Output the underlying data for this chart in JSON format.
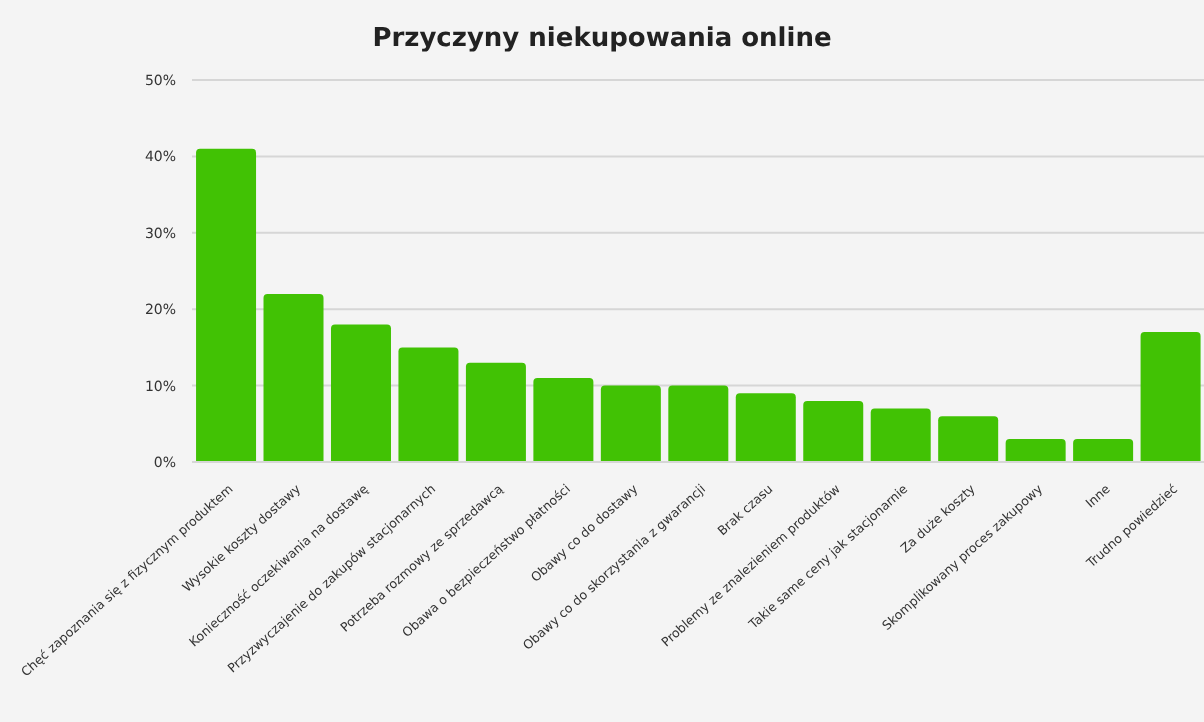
{
  "chart_data": {
    "type": "bar",
    "title": "Przyczyny niekupowania online",
    "categories": [
      "Chęć zapoznania się z fizycznym produktem",
      "Wysokie koszty dostawy",
      "Konieczność oczekiwania na dostawę",
      "Przyzwyczajenie do zakupów stacjonarnych",
      "Potrzeba rozmowy ze sprzedawcą",
      "Obawa o bezpieczeństwo płatności",
      "Obawy co do dostawy",
      "Obawy co do skorzystania z gwarancji",
      "Brak czasu",
      "Problemy ze znalezieniem produktów",
      "Takie same ceny jak stacjonarnie",
      "Za duże koszty",
      "Skomplikowany proces zakupowy",
      "Inne",
      "Trudno powiedzieć"
    ],
    "values": [
      41,
      22,
      18,
      15,
      13,
      11,
      10,
      10,
      9,
      8,
      7,
      6,
      3,
      3,
      17
    ],
    "color": "#41c204",
    "ylim": [
      0,
      50
    ],
    "yticks": [
      {
        "value": 0,
        "label": "0%"
      },
      {
        "value": 10,
        "label": "10%"
      },
      {
        "value": 20,
        "label": "20%"
      },
      {
        "value": 30,
        "label": "30%"
      },
      {
        "value": 40,
        "label": "40%"
      },
      {
        "value": 50,
        "label": "50%"
      }
    ],
    "grid": "y"
  }
}
